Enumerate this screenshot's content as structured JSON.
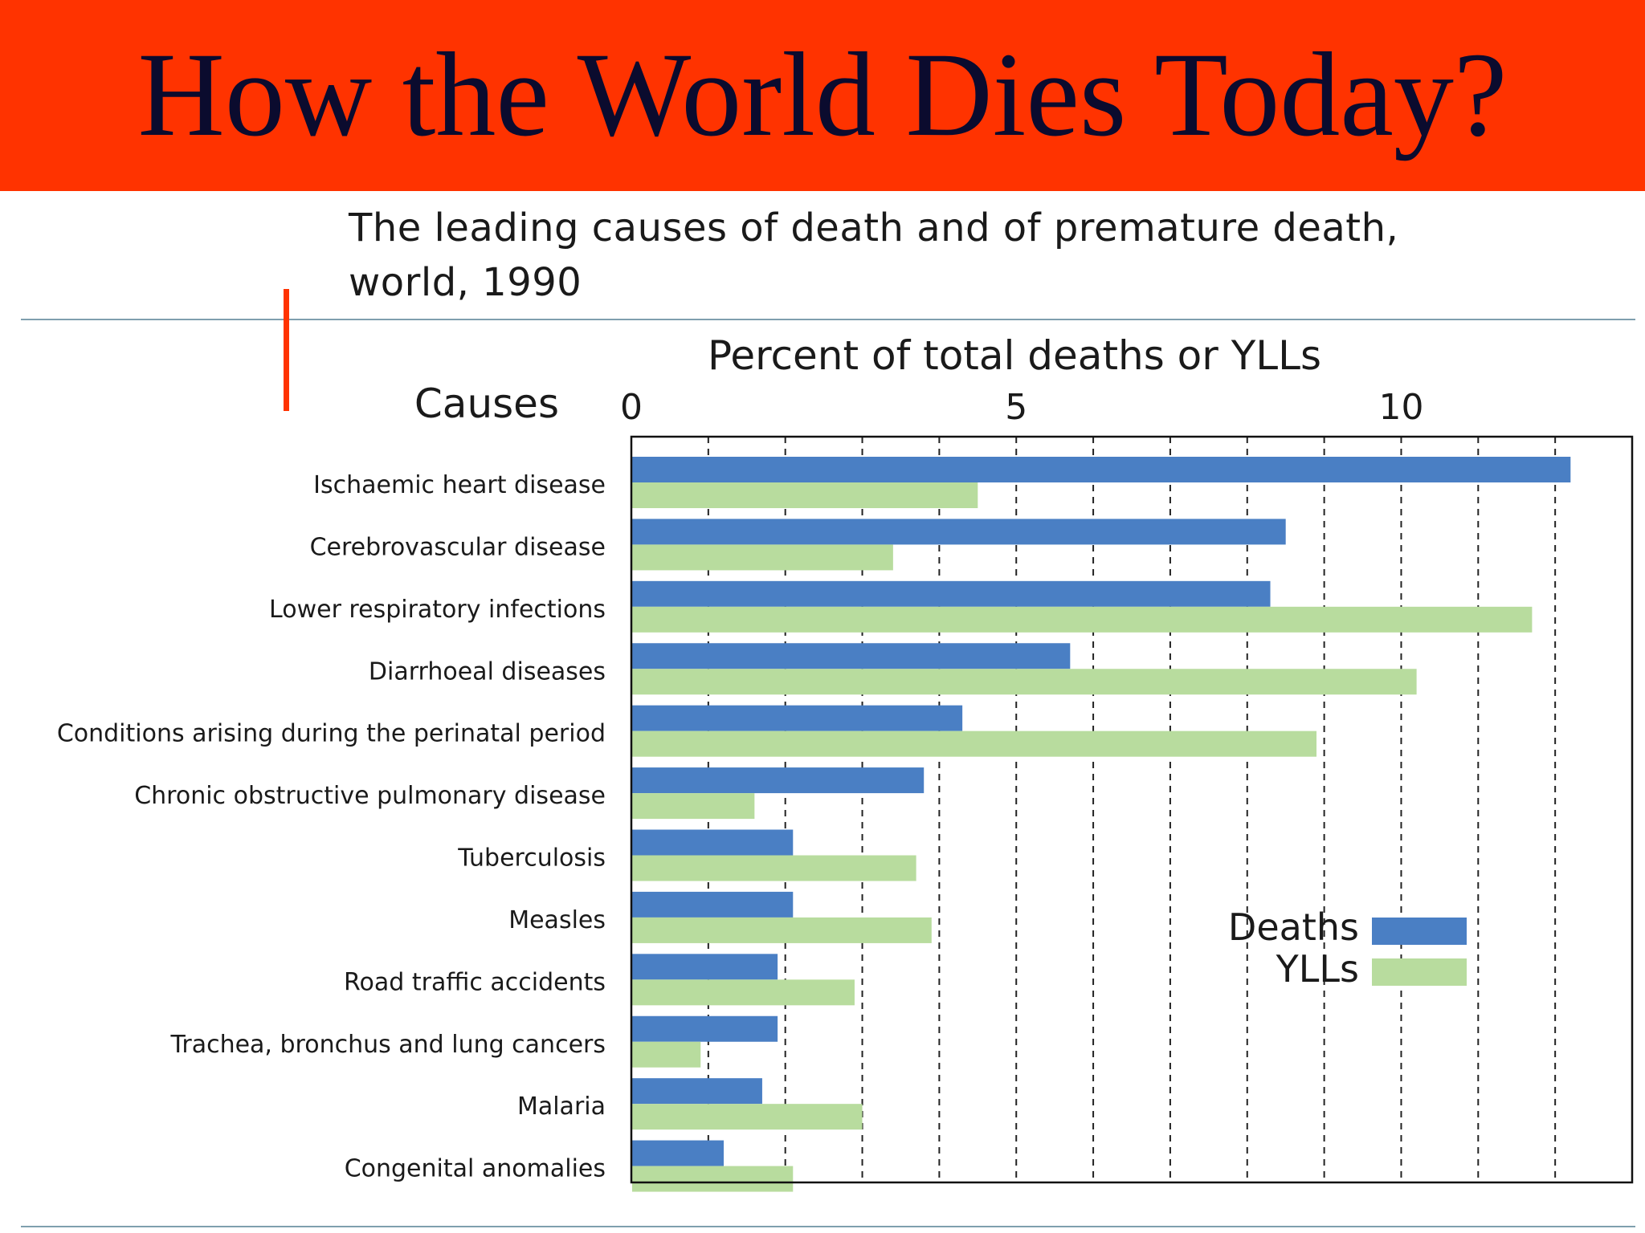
{
  "slide": {
    "title": "How the World Dies Today?",
    "subtitle_line1": "The leading causes of death and of premature death,",
    "subtitle_line2": "world, 1990"
  },
  "colors": {
    "banner": "#ff3300",
    "title_text": "#0b0b2e",
    "deaths": "#4a7fc4",
    "ylls": "#b8dc9e"
  },
  "chart_data": {
    "type": "bar",
    "orientation": "horizontal",
    "title": "Percent of total deaths or YLLs",
    "category_axis_label": "Causes",
    "xlim": [
      0,
      13
    ],
    "x_ticks": [
      0,
      5,
      10
    ],
    "grid": "dashed vertical lines every 1 unit",
    "legend_position": "right",
    "categories": [
      "Ischaemic heart disease",
      "Cerebrovascular disease",
      "Lower respiratory infections",
      "Diarrhoeal diseases",
      "Conditions arising during the perinatal period",
      "Chronic obstructive pulmonary disease",
      "Tuberculosis",
      "Measles",
      "Road traffic accidents",
      "Trachea, bronchus and lung cancers",
      "Malaria",
      "Congenital anomalies"
    ],
    "series": [
      {
        "name": "Deaths",
        "values": [
          12.2,
          8.5,
          8.3,
          5.7,
          4.3,
          3.8,
          2.1,
          2.1,
          1.9,
          1.9,
          1.7,
          1.2
        ]
      },
      {
        "name": "YLLs",
        "values": [
          4.5,
          3.4,
          11.7,
          10.2,
          8.9,
          1.6,
          3.7,
          3.9,
          2.9,
          0.9,
          3.0,
          2.1
        ]
      }
    ]
  }
}
